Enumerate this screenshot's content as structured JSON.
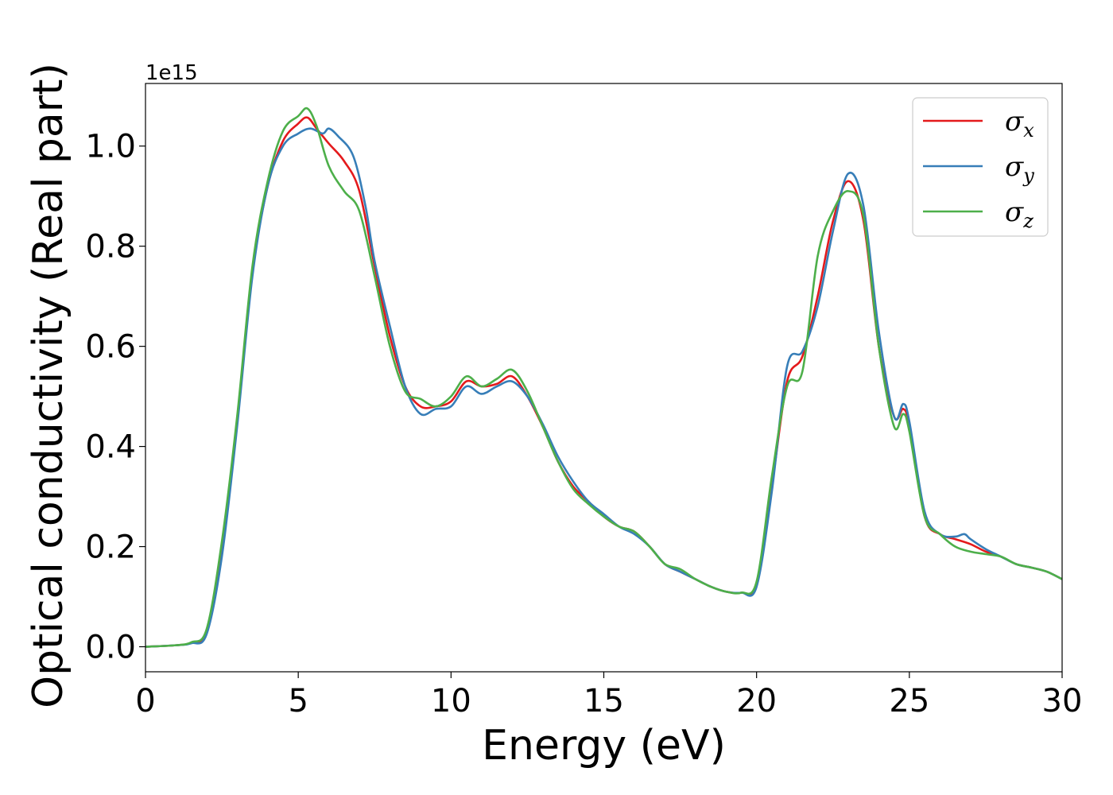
{
  "chart_data": {
    "type": "line",
    "title": "",
    "xlabel": "Energy (eV)",
    "ylabel": "Optical conductivity (Real part)",
    "y_offset_label": "1e15",
    "xlim": [
      0,
      30
    ],
    "ylim": [
      -0.05,
      1.125
    ],
    "xticks": [
      0,
      5,
      10,
      15,
      20,
      25,
      30
    ],
    "xtick_labels": [
      "0",
      "5",
      "10",
      "15",
      "20",
      "25",
      "30"
    ],
    "yticks": [
      0.0,
      0.2,
      0.4,
      0.6,
      0.8,
      1.0
    ],
    "ytick_labels": [
      "0.0",
      "0.2",
      "0.4",
      "0.6",
      "0.8",
      "1.0"
    ],
    "grid": false,
    "legend_position": "top-right",
    "series": [
      {
        "name": "σx",
        "symbol": "σ",
        "subscript": "x",
        "color": "#e41a1c",
        "points": [
          [
            0,
            0
          ],
          [
            1,
            0.003
          ],
          [
            1.5,
            0.008
          ],
          [
            2,
            0.03
          ],
          [
            2.5,
            0.2
          ],
          [
            3,
            0.45
          ],
          [
            3.5,
            0.75
          ],
          [
            4,
            0.92
          ],
          [
            4.5,
            1.01
          ],
          [
            5,
            1.045
          ],
          [
            5.3,
            1.057
          ],
          [
            5.6,
            1.035
          ],
          [
            6,
            1.005
          ],
          [
            6.5,
            0.97
          ],
          [
            7,
            0.91
          ],
          [
            7.5,
            0.76
          ],
          [
            8,
            0.62
          ],
          [
            8.5,
            0.52
          ],
          [
            9,
            0.48
          ],
          [
            9.5,
            0.48
          ],
          [
            10,
            0.49
          ],
          [
            10.5,
            0.53
          ],
          [
            11,
            0.52
          ],
          [
            11.5,
            0.525
          ],
          [
            12,
            0.54
          ],
          [
            12.5,
            0.5
          ],
          [
            13,
            0.44
          ],
          [
            13.5,
            0.37
          ],
          [
            14,
            0.32
          ],
          [
            14.5,
            0.29
          ],
          [
            15,
            0.26
          ],
          [
            15.5,
            0.24
          ],
          [
            16,
            0.23
          ],
          [
            16.5,
            0.2
          ],
          [
            17,
            0.165
          ],
          [
            17.5,
            0.15
          ],
          [
            18,
            0.135
          ],
          [
            18.5,
            0.12
          ],
          [
            19,
            0.11
          ],
          [
            19.5,
            0.108
          ],
          [
            20,
            0.125
          ],
          [
            20.5,
            0.32
          ],
          [
            21,
            0.53
          ],
          [
            21.5,
            0.58
          ],
          [
            22,
            0.7
          ],
          [
            22.5,
            0.85
          ],
          [
            23,
            0.93
          ],
          [
            23.5,
            0.85
          ],
          [
            24,
            0.6
          ],
          [
            24.5,
            0.46
          ],
          [
            24.8,
            0.475
          ],
          [
            25,
            0.44
          ],
          [
            25.5,
            0.26
          ],
          [
            26,
            0.225
          ],
          [
            26.5,
            0.215
          ],
          [
            27,
            0.205
          ],
          [
            27.5,
            0.19
          ],
          [
            28,
            0.18
          ],
          [
            28.5,
            0.165
          ],
          [
            29,
            0.158
          ],
          [
            29.5,
            0.15
          ],
          [
            30,
            0.135
          ]
        ]
      },
      {
        "name": "σy",
        "symbol": "σ",
        "subscript": "y",
        "color": "#377eb8",
        "points": [
          [
            0,
            0
          ],
          [
            1,
            0.003
          ],
          [
            1.5,
            0.007
          ],
          [
            2,
            0.025
          ],
          [
            2.5,
            0.18
          ],
          [
            3,
            0.44
          ],
          [
            3.5,
            0.74
          ],
          [
            4,
            0.92
          ],
          [
            4.5,
            1.0
          ],
          [
            5,
            1.025
          ],
          [
            5.4,
            1.035
          ],
          [
            5.8,
            1.025
          ],
          [
            6,
            1.035
          ],
          [
            6.3,
            1.02
          ],
          [
            6.8,
            0.98
          ],
          [
            7.2,
            0.88
          ],
          [
            7.5,
            0.77
          ],
          [
            8,
            0.64
          ],
          [
            8.5,
            0.52
          ],
          [
            9,
            0.465
          ],
          [
            9.5,
            0.475
          ],
          [
            10,
            0.48
          ],
          [
            10.5,
            0.52
          ],
          [
            11,
            0.505
          ],
          [
            11.5,
            0.52
          ],
          [
            12,
            0.53
          ],
          [
            12.5,
            0.5
          ],
          [
            13,
            0.445
          ],
          [
            13.5,
            0.38
          ],
          [
            14,
            0.33
          ],
          [
            14.5,
            0.29
          ],
          [
            15,
            0.265
          ],
          [
            15.5,
            0.24
          ],
          [
            16,
            0.225
          ],
          [
            16.5,
            0.2
          ],
          [
            17,
            0.165
          ],
          [
            17.5,
            0.15
          ],
          [
            18,
            0.135
          ],
          [
            18.5,
            0.12
          ],
          [
            19,
            0.11
          ],
          [
            19.5,
            0.108
          ],
          [
            20,
            0.12
          ],
          [
            20.5,
            0.31
          ],
          [
            21,
            0.56
          ],
          [
            21.5,
            0.59
          ],
          [
            22,
            0.68
          ],
          [
            22.5,
            0.83
          ],
          [
            23,
            0.945
          ],
          [
            23.5,
            0.88
          ],
          [
            24,
            0.63
          ],
          [
            24.5,
            0.46
          ],
          [
            24.8,
            0.485
          ],
          [
            25,
            0.45
          ],
          [
            25.5,
            0.27
          ],
          [
            26,
            0.225
          ],
          [
            26.5,
            0.22
          ],
          [
            26.8,
            0.225
          ],
          [
            27,
            0.215
          ],
          [
            27.5,
            0.195
          ],
          [
            28,
            0.18
          ],
          [
            28.5,
            0.165
          ],
          [
            29,
            0.158
          ],
          [
            29.5,
            0.15
          ],
          [
            30,
            0.135
          ]
        ]
      },
      {
        "name": "σz",
        "symbol": "σ",
        "subscript": "z",
        "color": "#4daf4a",
        "points": [
          [
            0,
            0
          ],
          [
            1,
            0.003
          ],
          [
            1.5,
            0.009
          ],
          [
            2,
            0.035
          ],
          [
            2.5,
            0.21
          ],
          [
            3,
            0.46
          ],
          [
            3.5,
            0.76
          ],
          [
            4,
            0.93
          ],
          [
            4.5,
            1.03
          ],
          [
            5,
            1.06
          ],
          [
            5.3,
            1.075
          ],
          [
            5.6,
            1.04
          ],
          [
            6,
            0.96
          ],
          [
            6.5,
            0.91
          ],
          [
            7,
            0.87
          ],
          [
            7.5,
            0.74
          ],
          [
            8,
            0.6
          ],
          [
            8.5,
            0.51
          ],
          [
            9,
            0.495
          ],
          [
            9.5,
            0.48
          ],
          [
            10,
            0.5
          ],
          [
            10.5,
            0.54
          ],
          [
            11,
            0.52
          ],
          [
            11.5,
            0.535
          ],
          [
            12,
            0.553
          ],
          [
            12.5,
            0.51
          ],
          [
            13,
            0.44
          ],
          [
            13.5,
            0.37
          ],
          [
            14,
            0.315
          ],
          [
            14.5,
            0.285
          ],
          [
            15,
            0.26
          ],
          [
            15.5,
            0.24
          ],
          [
            16,
            0.23
          ],
          [
            16.5,
            0.2
          ],
          [
            17,
            0.165
          ],
          [
            17.5,
            0.155
          ],
          [
            18,
            0.135
          ],
          [
            18.5,
            0.12
          ],
          [
            19,
            0.11
          ],
          [
            19.5,
            0.108
          ],
          [
            20,
            0.13
          ],
          [
            20.5,
            0.34
          ],
          [
            21,
            0.52
          ],
          [
            21.5,
            0.55
          ],
          [
            22,
            0.78
          ],
          [
            22.5,
            0.87
          ],
          [
            23,
            0.91
          ],
          [
            23.5,
            0.86
          ],
          [
            24,
            0.6
          ],
          [
            24.5,
            0.44
          ],
          [
            24.8,
            0.465
          ],
          [
            25,
            0.43
          ],
          [
            25.5,
            0.26
          ],
          [
            26,
            0.225
          ],
          [
            26.5,
            0.2
          ],
          [
            27,
            0.19
          ],
          [
            27.5,
            0.185
          ],
          [
            28,
            0.18
          ],
          [
            28.5,
            0.165
          ],
          [
            29,
            0.158
          ],
          [
            29.5,
            0.15
          ],
          [
            30,
            0.135
          ]
        ]
      }
    ]
  }
}
